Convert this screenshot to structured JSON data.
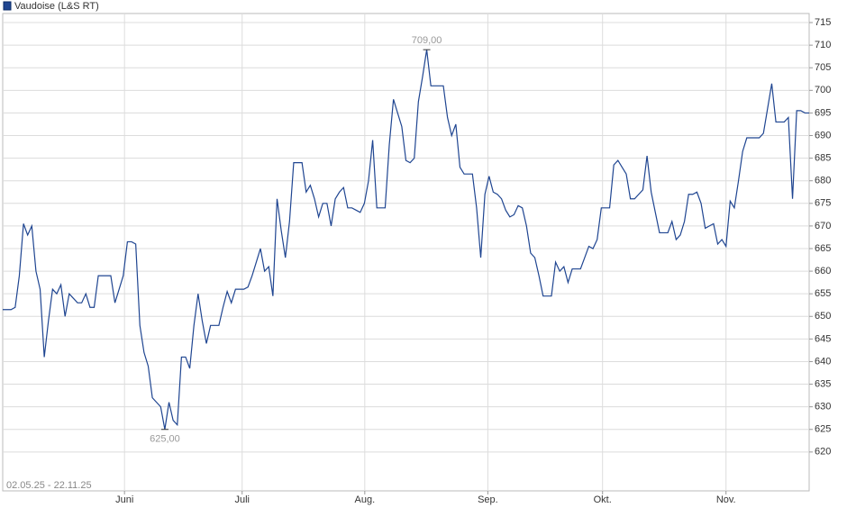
{
  "chart_data": {
    "type": "line",
    "date_range": "02.05.25 - 22.11.25",
    "series": [
      {
        "name": "Vaudoise (L&S RT)",
        "color": "#1f4591",
        "values": [
          651.5,
          651.5,
          651.5,
          652,
          659,
          670.5,
          668,
          670,
          660,
          656,
          641,
          649,
          656,
          655,
          657,
          650,
          655,
          654,
          653,
          653,
          655,
          652,
          652,
          659,
          659,
          659,
          659,
          653,
          656,
          659,
          666.5,
          666.5,
          666,
          648,
          642,
          639,
          632,
          631,
          630,
          625,
          631,
          627,
          626,
          641,
          641,
          638.5,
          648,
          655,
          649,
          644,
          648,
          648,
          648,
          652,
          655.5,
          653,
          656,
          656,
          656,
          656.5,
          659,
          662,
          665,
          660,
          661,
          654.5,
          676,
          669,
          663,
          671,
          684,
          684,
          684,
          677.5,
          679,
          676,
          672,
          675,
          675,
          670,
          676,
          677.5,
          678.5,
          674,
          674,
          673.5,
          673,
          675,
          680,
          689,
          674,
          674,
          674,
          688,
          698,
          695,
          692,
          684.5,
          684,
          685,
          697.5,
          703,
          709,
          701,
          701,
          701,
          701,
          694,
          690,
          692.5,
          683,
          681.5,
          681.5,
          681.5,
          674,
          663,
          677,
          681,
          677.5,
          677,
          676,
          673.5,
          672,
          672.5,
          674.5,
          674,
          670,
          664,
          663,
          659,
          654.5,
          654.5,
          654.5,
          662,
          660,
          661,
          657.5,
          660.5,
          660.5,
          660.5,
          663,
          665.5,
          665,
          667,
          674,
          674,
          674,
          683.5,
          684.5,
          683,
          681.5,
          676,
          676,
          677,
          678,
          685.5,
          677.5,
          673,
          668.5,
          668.5,
          668.5,
          671,
          667,
          668,
          671,
          677,
          677,
          677.5,
          675,
          669.5,
          670,
          670.5,
          666,
          667,
          665.5,
          675.5,
          674,
          680,
          686.5,
          689.5,
          689.5,
          689.5,
          689.5,
          690.5,
          696,
          701.5,
          693,
          693,
          693,
          694,
          676,
          695.5,
          695.5,
          695,
          695
        ]
      }
    ],
    "annotations": [
      {
        "x": 102,
        "y": 709,
        "label": "709,00"
      },
      {
        "x": 39,
        "y": 625,
        "label": "625,00"
      }
    ],
    "xlim": [
      0,
      194
    ],
    "xticks": [
      {
        "value": 29.3,
        "label": "Juni"
      },
      {
        "value": 57.6,
        "label": "Juli"
      },
      {
        "value": 87.1,
        "label": "Aug."
      },
      {
        "value": 116.7,
        "label": "Sep."
      },
      {
        "value": 144.3,
        "label": "Okt."
      },
      {
        "value": 174,
        "label": "Nov."
      }
    ],
    "ylim": [
      611.4,
      717
    ],
    "yticks": [
      620,
      625,
      630,
      635,
      640,
      645,
      650,
      655,
      660,
      665,
      670,
      675,
      680,
      685,
      690,
      695,
      700,
      705,
      710,
      715
    ],
    "grid": true
  }
}
